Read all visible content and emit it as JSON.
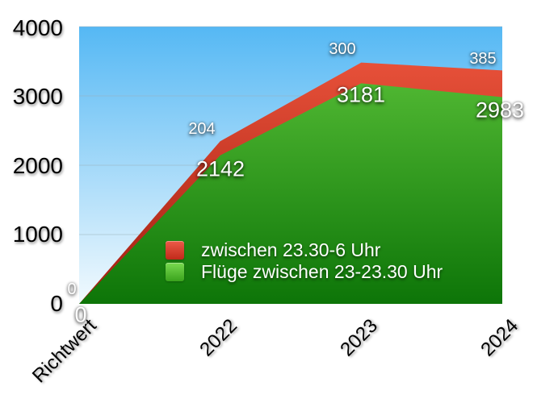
{
  "chart_data": {
    "type": "area",
    "stacked": true,
    "title": "",
    "xlabel": "",
    "ylabel": "",
    "categories": [
      "Richtwert",
      "2022",
      "2023",
      "2024"
    ],
    "series": [
      {
        "name": "zwischen 23.30-6 Uhr",
        "values": [
          0,
          204,
          300,
          385
        ],
        "color_top": "#f1583f",
        "color_bottom": "#a21d10"
      },
      {
        "name": "Flüge zwischen 23-23.30 Uhr",
        "values": [
          0,
          2142,
          3181,
          2983
        ],
        "color_top": "#60c73c",
        "color_bottom": "#0d7508"
      }
    ],
    "ylim": [
      0,
      4000
    ],
    "ytick_interval": 1000,
    "yticks": [
      "4000",
      "3000",
      "2000",
      "1000",
      "0"
    ],
    "grid": true,
    "gridline_color": "#9ab0ba",
    "legend_position": "inside-bottom-center",
    "plot_background": {
      "top": "#55b8f4",
      "bottom": "#f2fafe"
    }
  }
}
